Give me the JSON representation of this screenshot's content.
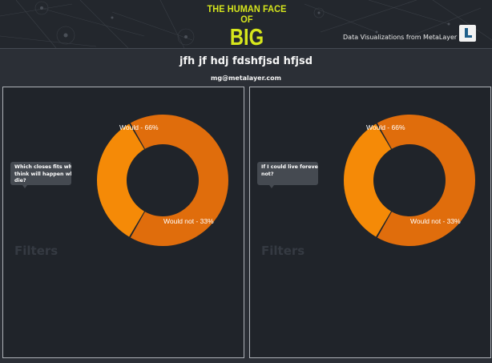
{
  "header": {
    "logo_line1": "THE HUMAN FACE OF",
    "logo_line2": "BIG DATA",
    "tagline": "Data Visualizations from MetaLayer",
    "logo_color": "#d6e61c"
  },
  "page": {
    "title": "jfh jf hdj fdshfjsd hfjsd",
    "email": "mg@metalayer.com"
  },
  "colors": {
    "slice_would": "#e06d0c",
    "slice_would_not": "#f58a07",
    "panel_bg": "#20242a"
  },
  "panels": [
    {
      "tooltip_lines": [
        "Which closes fits what",
        "think will happen whe",
        "die?"
      ],
      "filters_label": "Filters"
    },
    {
      "tooltip_lines": [
        "If I could live forever I",
        "not?"
      ],
      "filters_label": "Filters"
    }
  ],
  "chart_data": [
    {
      "type": "pie",
      "title": "",
      "categories": [
        "Would",
        "Would not"
      ],
      "values": [
        66,
        33
      ],
      "labels": [
        "Would - 66%",
        "Would not - 33%"
      ]
    },
    {
      "type": "pie",
      "title": "",
      "categories": [
        "Would",
        "Would not"
      ],
      "values": [
        66,
        33
      ],
      "labels": [
        "Would - 66%",
        "Would not - 33%"
      ]
    }
  ]
}
